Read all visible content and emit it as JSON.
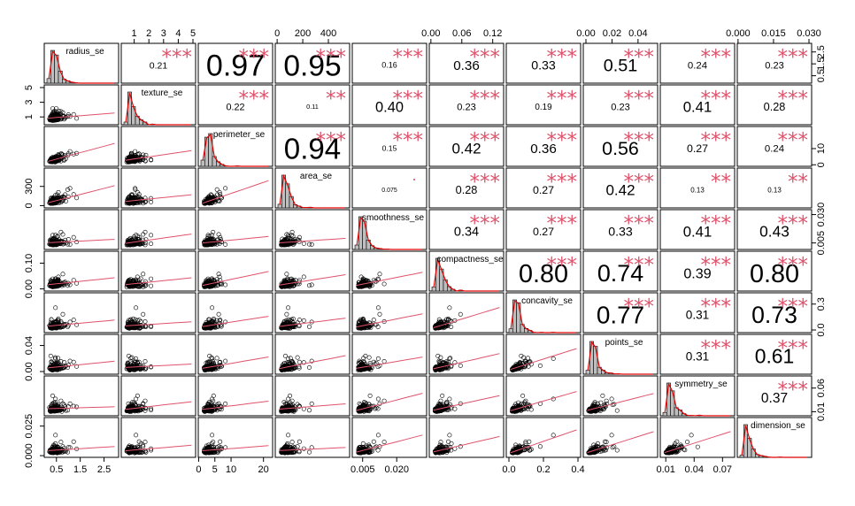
{
  "chart_data": {
    "type": "scatter-matrix",
    "title": "",
    "variables": [
      "radius_se",
      "texture_se",
      "perimeter_se",
      "area_se",
      "smoothness_se",
      "compactness_se",
      "concavity_se",
      "points_se",
      "symmetry_se",
      "dimension_se"
    ],
    "ranges": [
      [
        0.1,
        3.0
      ],
      [
        0.3,
        5.0
      ],
      [
        0.7,
        22.0
      ],
      [
        6,
        545
      ],
      [
        0.0016,
        0.032
      ],
      [
        0.002,
        0.136
      ],
      [
        0.0,
        0.4
      ],
      [
        0.0,
        0.053
      ],
      [
        0.007,
        0.08
      ],
      [
        0.0008,
        0.03
      ]
    ],
    "top_ticks": [
      {
        "col": 1,
        "values": [
          1,
          2,
          3,
          4,
          5
        ]
      },
      {
        "col": 3,
        "values": [
          0,
          200,
          400
        ]
      },
      {
        "col": 5,
        "values": [
          0.0,
          0.06,
          0.12
        ],
        "labels": [
          "0.00",
          "0.06",
          "0.12"
        ]
      },
      {
        "col": 7,
        "values": [
          0.0,
          0.02,
          0.04
        ],
        "labels": [
          "0.00",
          "0.02",
          "0.04"
        ]
      },
      {
        "col": 9,
        "values": [
          0.0,
          0.015,
          0.03
        ],
        "labels": [
          "0.000",
          "0.015",
          "0.030"
        ]
      }
    ],
    "bottom_ticks": [
      {
        "col": 0,
        "values": [
          0.5,
          1.5,
          2.5
        ]
      },
      {
        "col": 2,
        "values": [
          0,
          5,
          10,
          20
        ]
      },
      {
        "col": 4,
        "values": [
          0.005,
          0.02
        ],
        "labels": [
          "0.005",
          "0.020"
        ]
      },
      {
        "col": 6,
        "values": [
          0.0,
          0.2,
          0.4
        ],
        "labels": [
          "0.0",
          "0.2",
          "0.4"
        ]
      },
      {
        "col": 8,
        "values": [
          0.01,
          0.04,
          0.07
        ],
        "labels": [
          "0.01",
          "0.04",
          "0.07"
        ]
      }
    ],
    "left_ticks": [
      {
        "row": 1,
        "values": [
          1,
          3,
          5
        ]
      },
      {
        "row": 3,
        "values": [
          0,
          300
        ]
      },
      {
        "row": 5,
        "values": [
          0.0,
          0.1
        ],
        "labels": [
          "0.00",
          "0.10"
        ]
      },
      {
        "row": 7,
        "values": [
          0.0,
          0.04
        ],
        "labels": [
          "0.00",
          "0.04"
        ]
      },
      {
        "row": 9,
        "values": [
          0.0,
          0.025
        ],
        "labels": [
          "0.000",
          "0.025"
        ]
      }
    ],
    "right_ticks": [
      {
        "row": 0,
        "values": [
          0.5,
          1.5,
          2.5
        ]
      },
      {
        "row": 2,
        "values": [
          0,
          10
        ],
        "labels": [
          "0",
          "10"
        ]
      },
      {
        "row": 4,
        "values": [
          0.005,
          0.03
        ],
        "labels": [
          "0.005",
          "0.030"
        ]
      },
      {
        "row": 6,
        "values": [
          0.0,
          0.3
        ],
        "labels": [
          "0.0",
          "0.3"
        ]
      },
      {
        "row": 8,
        "values": [
          0.01,
          0.06
        ],
        "labels": [
          "0.01",
          "0.06"
        ]
      }
    ],
    "correlations": [
      {
        "row": 0,
        "col": 1,
        "r": "0.21",
        "stars": "***"
      },
      {
        "row": 0,
        "col": 2,
        "r": "0.97",
        "stars": "***"
      },
      {
        "row": 0,
        "col": 3,
        "r": "0.95",
        "stars": "***"
      },
      {
        "row": 0,
        "col": 4,
        "r": "0.16",
        "stars": "***"
      },
      {
        "row": 0,
        "col": 5,
        "r": "0.36",
        "stars": "***"
      },
      {
        "row": 0,
        "col": 6,
        "r": "0.33",
        "stars": "***"
      },
      {
        "row": 0,
        "col": 7,
        "r": "0.51",
        "stars": "***"
      },
      {
        "row": 0,
        "col": 8,
        "r": "0.24",
        "stars": "***"
      },
      {
        "row": 0,
        "col": 9,
        "r": "0.23",
        "stars": "***"
      },
      {
        "row": 1,
        "col": 2,
        "r": "0.22",
        "stars": "***"
      },
      {
        "row": 1,
        "col": 3,
        "r": "0.11",
        "stars": "**"
      },
      {
        "row": 1,
        "col": 4,
        "r": "0.40",
        "stars": "***"
      },
      {
        "row": 1,
        "col": 5,
        "r": "0.23",
        "stars": "***"
      },
      {
        "row": 1,
        "col": 6,
        "r": "0.19",
        "stars": "***"
      },
      {
        "row": 1,
        "col": 7,
        "r": "0.23",
        "stars": "***"
      },
      {
        "row": 1,
        "col": 8,
        "r": "0.41",
        "stars": "***"
      },
      {
        "row": 1,
        "col": 9,
        "r": "0.28",
        "stars": "***"
      },
      {
        "row": 2,
        "col": 3,
        "r": "0.94",
        "stars": "***"
      },
      {
        "row": 2,
        "col": 4,
        "r": "0.15",
        "stars": "***"
      },
      {
        "row": 2,
        "col": 5,
        "r": "0.42",
        "stars": "***"
      },
      {
        "row": 2,
        "col": 6,
        "r": "0.36",
        "stars": "***"
      },
      {
        "row": 2,
        "col": 7,
        "r": "0.56",
        "stars": "***"
      },
      {
        "row": 2,
        "col": 8,
        "r": "0.27",
        "stars": "***"
      },
      {
        "row": 2,
        "col": 9,
        "r": "0.24",
        "stars": "***"
      },
      {
        "row": 3,
        "col": 4,
        "r": "0.075",
        "stars": "."
      },
      {
        "row": 3,
        "col": 5,
        "r": "0.28",
        "stars": "***"
      },
      {
        "row": 3,
        "col": 6,
        "r": "0.27",
        "stars": "***"
      },
      {
        "row": 3,
        "col": 7,
        "r": "0.42",
        "stars": "***"
      },
      {
        "row": 3,
        "col": 8,
        "r": "0.13",
        "stars": "**"
      },
      {
        "row": 3,
        "col": 9,
        "r": "0.13",
        "stars": "**"
      },
      {
        "row": 4,
        "col": 5,
        "r": "0.34",
        "stars": "***"
      },
      {
        "row": 4,
        "col": 6,
        "r": "0.27",
        "stars": "***"
      },
      {
        "row": 4,
        "col": 7,
        "r": "0.33",
        "stars": "***"
      },
      {
        "row": 4,
        "col": 8,
        "r": "0.41",
        "stars": "***"
      },
      {
        "row": 4,
        "col": 9,
        "r": "0.43",
        "stars": "***"
      },
      {
        "row": 5,
        "col": 6,
        "r": "0.80",
        "stars": "***"
      },
      {
        "row": 5,
        "col": 7,
        "r": "0.74",
        "stars": "***"
      },
      {
        "row": 5,
        "col": 8,
        "r": "0.39",
        "stars": "***"
      },
      {
        "row": 5,
        "col": 9,
        "r": "0.80",
        "stars": "***"
      },
      {
        "row": 6,
        "col": 7,
        "r": "0.77",
        "stars": "***"
      },
      {
        "row": 6,
        "col": 8,
        "r": "0.31",
        "stars": "***"
      },
      {
        "row": 6,
        "col": 9,
        "r": "0.73",
        "stars": "***"
      },
      {
        "row": 7,
        "col": 8,
        "r": "0.31",
        "stars": "***"
      },
      {
        "row": 7,
        "col": 9,
        "r": "0.61",
        "stars": "***"
      },
      {
        "row": 8,
        "col": 9,
        "r": "0.37",
        "stars": "***"
      }
    ],
    "colors": {
      "stars": "#DF536B",
      "smooth_line": "#DF536B",
      "density_line": "#DF0000",
      "hist_fill": "#bebebe",
      "points": "#000000"
    }
  }
}
